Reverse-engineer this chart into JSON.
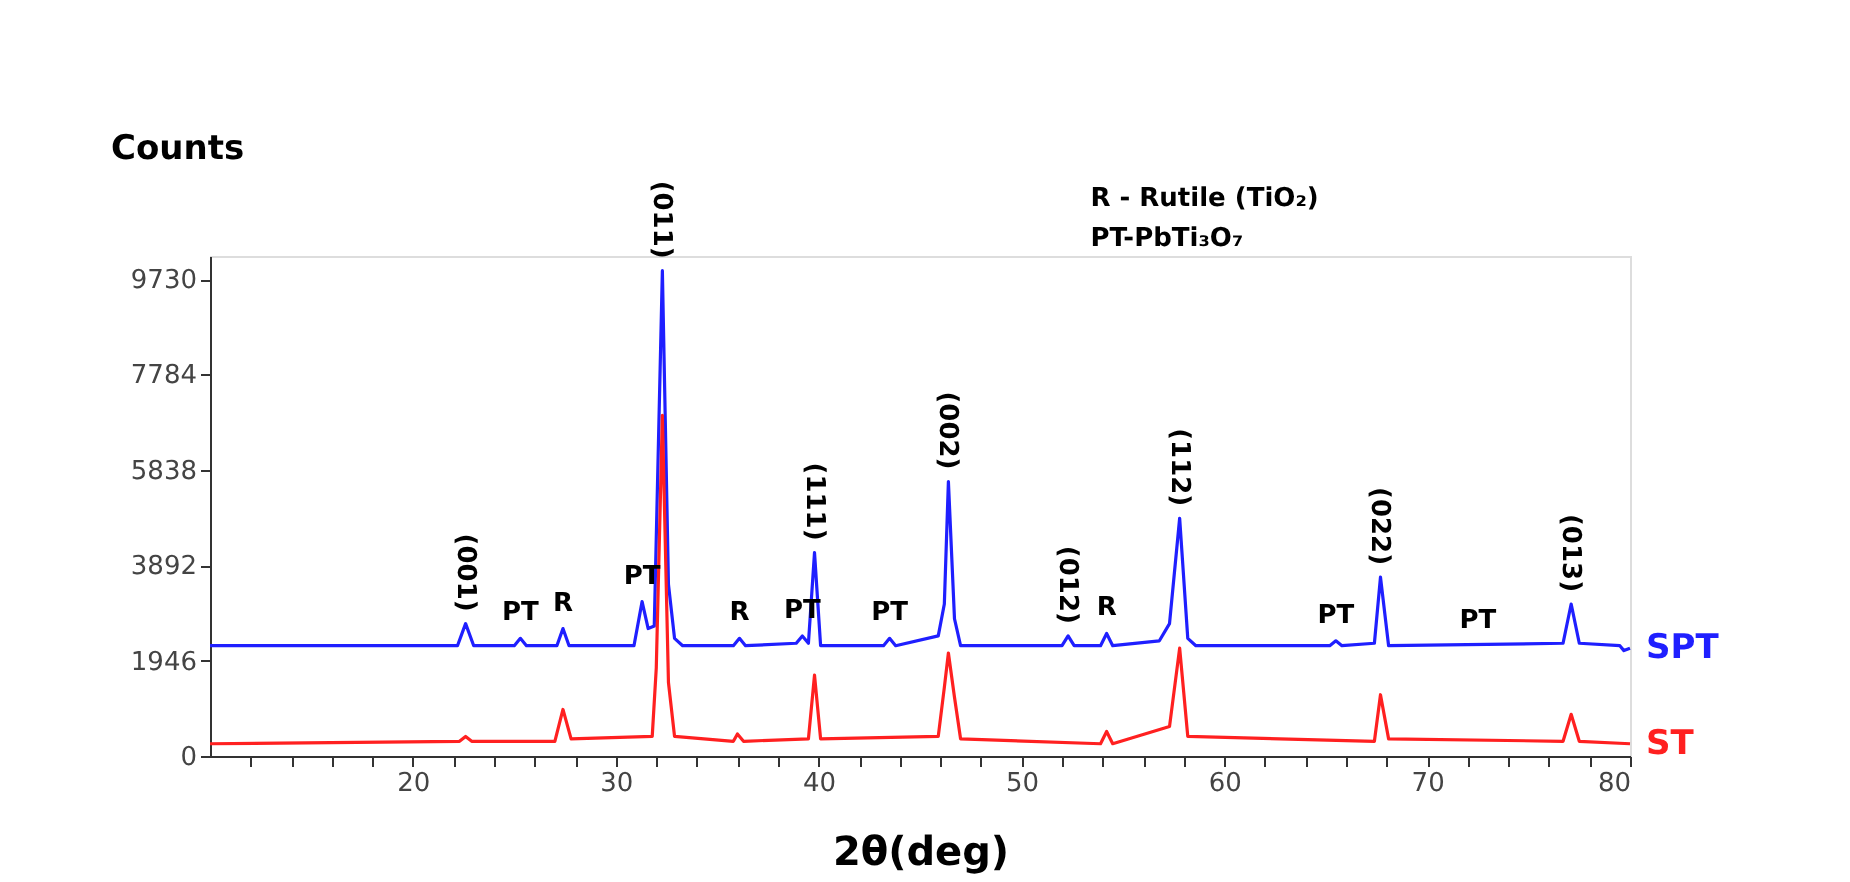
{
  "chart_data": {
    "type": "line",
    "ylabel": "Counts",
    "xlabel": "2θ(deg)",
    "xlim": [
      10,
      80
    ],
    "ylim": [
      0,
      10200
    ],
    "xticks": [
      {
        "value": 12,
        "label": null
      },
      {
        "value": 14,
        "label": null
      },
      {
        "value": 16,
        "label": null
      },
      {
        "value": 18,
        "label": null
      },
      20,
      {
        "value": 22,
        "label": null
      },
      {
        "value": 24,
        "label": null
      },
      {
        "value": 26,
        "label": null
      },
      {
        "value": 28,
        "label": null
      },
      30,
      {
        "value": 32,
        "label": null
      },
      {
        "value": 34,
        "label": null
      },
      {
        "value": 36,
        "label": null
      },
      {
        "value": 38,
        "label": null
      },
      40,
      {
        "value": 42,
        "label": null
      },
      {
        "value": 44,
        "label": null
      },
      {
        "value": 46,
        "label": null
      },
      {
        "value": 48,
        "label": null
      },
      50,
      {
        "value": 52,
        "label": null
      },
      {
        "value": 54,
        "label": null
      },
      {
        "value": 56,
        "label": null
      },
      {
        "value": 58,
        "label": null
      },
      60,
      {
        "value": 62,
        "label": null
      },
      {
        "value": 64,
        "label": null
      },
      {
        "value": 66,
        "label": null
      },
      {
        "value": 68,
        "label": null
      },
      70,
      {
        "value": 72,
        "label": null
      },
      {
        "value": 74,
        "label": null
      },
      {
        "value": 76,
        "label": null
      },
      {
        "value": 78,
        "label": null
      },
      80
    ],
    "yticks": [
      0,
      1946,
      3892,
      5838,
      7784,
      9730
    ],
    "grid": false,
    "marker": "none",
    "line_style": "solid",
    "series": [
      {
        "name": "SPT",
        "color": "#1f1fff",
        "x": [
          10,
          22.2,
          22.6,
          23.0,
          25.0,
          25.3,
          25.6,
          27.1,
          27.4,
          27.7,
          30.9,
          31.3,
          31.6,
          31.9,
          32.3,
          32.6,
          32.9,
          33.3,
          35.8,
          36.1,
          36.4,
          38.9,
          39.2,
          39.5,
          39.8,
          40.1,
          43.2,
          43.5,
          43.8,
          45.9,
          46.2,
          46.4,
          46.7,
          47.0,
          52.0,
          52.3,
          52.6,
          53.9,
          54.2,
          54.5,
          56.8,
          57.3,
          57.8,
          58.2,
          58.6,
          65.2,
          65.5,
          65.8,
          67.4,
          67.7,
          68.1,
          76.7,
          77.1,
          77.5,
          79.5,
          79.7,
          80
        ],
        "values": [
          2250,
          2250,
          2700,
          2250,
          2250,
          2400,
          2250,
          2250,
          2600,
          2250,
          2250,
          3150,
          2600,
          2650,
          9900,
          3500,
          2400,
          2250,
          2250,
          2400,
          2250,
          2300,
          2450,
          2300,
          4150,
          2250,
          2250,
          2400,
          2250,
          2450,
          3100,
          5600,
          2800,
          2250,
          2250,
          2450,
          2250,
          2250,
          2500,
          2250,
          2350,
          2700,
          4850,
          2400,
          2250,
          2250,
          2350,
          2250,
          2300,
          3650,
          2250,
          2300,
          3100,
          2300,
          2250,
          2150,
          2200
        ]
      },
      {
        "name": "ST",
        "color": "#ff2020",
        "x": [
          10,
          22.3,
          22.6,
          22.9,
          27.0,
          27.4,
          27.8,
          31.8,
          32.0,
          32.3,
          32.6,
          32.9,
          35.8,
          36.0,
          36.3,
          39.5,
          39.8,
          40.1,
          45.9,
          46.2,
          46.4,
          46.7,
          47.0,
          53.9,
          54.2,
          54.5,
          57.3,
          57.8,
          58.2,
          67.4,
          67.7,
          68.1,
          76.7,
          77.1,
          77.5,
          80
        ],
        "values": [
          250,
          300,
          400,
          300,
          300,
          950,
          350,
          400,
          1800,
          6950,
          1500,
          400,
          300,
          450,
          300,
          350,
          1650,
          350,
          400,
          1400,
          2100,
          1200,
          350,
          250,
          500,
          250,
          600,
          2200,
          400,
          300,
          1250,
          350,
          300,
          850,
          300,
          250
        ]
      }
    ],
    "annotations": [
      "R  - Rutile (TiO₂)",
      "PT-PbTi₃O₇",
      {
        "text": "(001)",
        "x": 22.6,
        "y": 2700
      },
      {
        "text": "PT",
        "x": 25.3,
        "y": 2400
      },
      {
        "text": "R",
        "x": 27.4,
        "y": 2600
      },
      {
        "text": "PT",
        "x": 31.3,
        "y": 3150
      },
      {
        "text": "(011)",
        "x": 32.3,
        "y": 9900
      },
      {
        "text": "R",
        "x": 36.1,
        "y": 2400
      },
      {
        "text": "PT",
        "x": 39.2,
        "y": 2450
      },
      {
        "text": "(111)",
        "x": 39.8,
        "y": 4150
      },
      {
        "text": "PT",
        "x": 43.5,
        "y": 2400
      },
      {
        "text": "(002)",
        "x": 46.4,
        "y": 5600
      },
      {
        "text": "(012)",
        "x": 52.3,
        "y": 2450
      },
      {
        "text": "R",
        "x": 54.2,
        "y": 2500
      },
      {
        "text": "(112)",
        "x": 57.8,
        "y": 4850
      },
      {
        "text": "PT",
        "x": 65.5,
        "y": 2350
      },
      {
        "text": "(022)",
        "x": 67.7,
        "y": 3650
      },
      {
        "text": "PT",
        "x": 72.5,
        "y": 2250
      },
      {
        "text": "(013)",
        "x": 77.1,
        "y": 3100
      }
    ]
  }
}
